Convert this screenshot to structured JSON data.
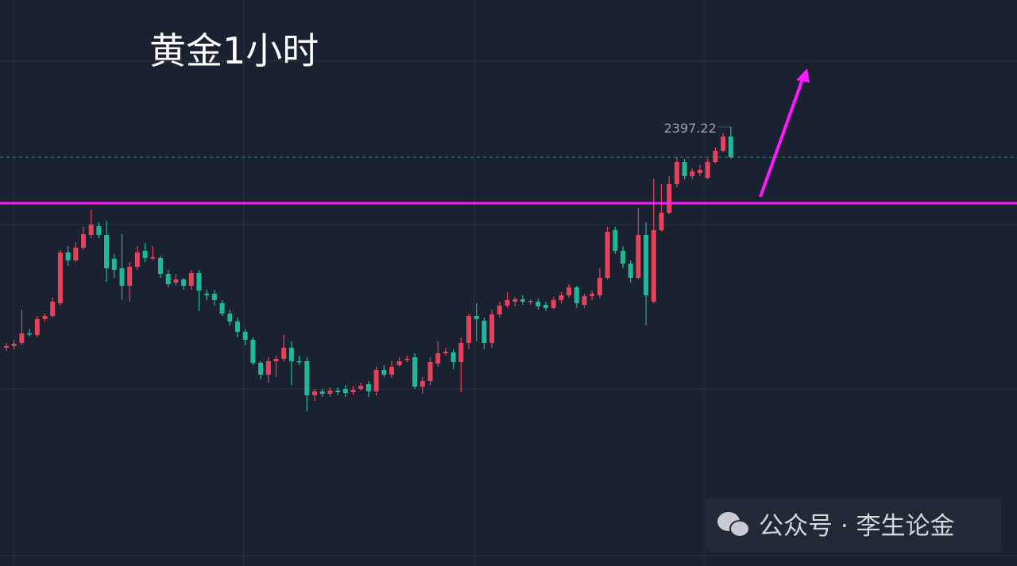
{
  "chart_data": {
    "type": "candlestick",
    "title": "黄金1小时",
    "watermark": "公众号 · 李生论金",
    "up_color": "#e8425a",
    "down_color": "#1fb89b",
    "line_color": "#ff1aff",
    "ylim": [
      2258.97,
      2437.22
    ],
    "hline": 2373.22,
    "open": [
      2327.72,
      2328.22,
      2329.22,
      2332.22,
      2331.72,
      2336.72,
      2337.72,
      2341.72,
      2357.72,
      2355.22,
      2359.22,
      2363.22,
      2365.97,
      2363.22,
      2355.72,
      2352.72,
      2347.22,
      2353.22,
      2358.22,
      2355.97,
      2355.97,
      2350.97,
      2348.22,
      2349.22,
      2347.22,
      2351.22,
      2344.72,
      2344.72,
      2341.72,
      2338.47,
      2335.97,
      2332.72,
      2330.22,
      2322.97,
      2319.22,
      2323.47,
      2324.22,
      2327.72,
      2323.47,
      2323.47,
      2312.72,
      2313.97,
      2313.22,
      2314.22,
      2314.72,
      2313.72,
      2314.72,
      2316.22,
      2313.97,
      2320.72,
      2319.22,
      2322.22,
      2323.97,
      2324.72,
      2315.47,
      2317.22,
      2322.72,
      2325.97,
      2326.22,
      2323.22,
      2329.22,
      2337.72,
      2336.22,
      2329.22,
      2338.22,
      2340.97,
      2342.22,
      2342.97,
      2342.22,
      2342.22,
      2341.22,
      2340.22,
      2342.72,
      2344.22,
      2346.72,
      2341.22,
      2343.97,
      2344.22,
      2349.72,
      2364.72,
      2358.22,
      2354.22,
      2349.72,
      2363.22,
      2342.22,
      2364.72,
      2370.22,
      2379.22,
      2386.22,
      2381.72,
      2382.72,
      2381.22,
      2386.22,
      2389.72,
      2394.22
    ],
    "high": [
      2329.22,
      2330.22,
      2339.72,
      2333.47,
      2337.72,
      2338.47,
      2343.47,
      2358.47,
      2359.72,
      2360.97,
      2365.97,
      2371.22,
      2367.22,
      2367.72,
      2357.22,
      2363.47,
      2354.72,
      2359.72,
      2360.72,
      2359.72,
      2356.72,
      2352.22,
      2350.97,
      2349.72,
      2352.22,
      2352.22,
      2345.97,
      2345.97,
      2342.72,
      2339.72,
      2337.22,
      2333.47,
      2330.97,
      2323.47,
      2324.72,
      2325.22,
      2331.72,
      2329.72,
      2325.22,
      2324.72,
      2314.72,
      2314.72,
      2315.22,
      2315.22,
      2315.97,
      2315.72,
      2316.72,
      2317.22,
      2321.72,
      2322.22,
      2323.47,
      2324.72,
      2325.22,
      2325.97,
      2318.47,
      2324.72,
      2329.72,
      2327.72,
      2327.22,
      2330.97,
      2338.47,
      2341.72,
      2337.22,
      2339.72,
      2342.22,
      2345.22,
      2343.72,
      2344.22,
      2342.97,
      2343.22,
      2342.22,
      2343.72,
      2345.22,
      2347.72,
      2347.22,
      2344.72,
      2345.72,
      2352.72,
      2365.72,
      2365.72,
      2359.72,
      2355.22,
      2371.72,
      2367.22,
      2380.97,
      2379.22,
      2381.72,
      2387.72,
      2387.22,
      2384.22,
      2385.22,
      2387.22,
      2390.72,
      2395.22,
      2397.22
    ],
    "low": [
      2326.72,
      2327.22,
      2328.47,
      2331.22,
      2330.97,
      2335.97,
      2337.22,
      2340.97,
      2353.47,
      2354.72,
      2358.47,
      2362.22,
      2362.22,
      2348.47,
      2349.72,
      2342.72,
      2342.22,
      2352.22,
      2354.72,
      2355.22,
      2349.72,
      2346.72,
      2347.22,
      2345.97,
      2345.97,
      2339.22,
      2342.72,
      2340.97,
      2337.72,
      2334.72,
      2330.97,
      2328.47,
      2322.22,
      2317.72,
      2316.72,
      2318.47,
      2323.22,
      2315.97,
      2322.22,
      2307.72,
      2310.97,
      2312.22,
      2312.22,
      2312.72,
      2312.22,
      2312.97,
      2314.22,
      2312.22,
      2312.72,
      2318.47,
      2318.22,
      2321.72,
      2323.22,
      2314.72,
      2313.22,
      2315.97,
      2321.72,
      2325.22,
      2320.97,
      2313.72,
      2327.22,
      2329.72,
      2327.22,
      2327.72,
      2337.22,
      2340.22,
      2340.72,
      2341.22,
      2341.22,
      2339.72,
      2339.22,
      2339.72,
      2341.72,
      2343.47,
      2340.22,
      2340.22,
      2342.72,
      2343.22,
      2349.22,
      2357.22,
      2352.72,
      2348.22,
      2349.22,
      2334.72,
      2341.72,
      2364.22,
      2369.72,
      2378.22,
      2380.72,
      2380.72,
      2381.72,
      2380.72,
      2385.72,
      2389.22,
      2387.22
    ],
    "close": [
      2328.22,
      2328.97,
      2332.22,
      2331.97,
      2336.72,
      2337.72,
      2342.22,
      2357.72,
      2355.22,
      2359.22,
      2363.47,
      2366.47,
      2363.22,
      2352.72,
      2352.22,
      2347.22,
      2353.22,
      2357.72,
      2355.97,
      2356.22,
      2350.97,
      2347.72,
      2349.22,
      2347.22,
      2351.22,
      2345.72,
      2344.22,
      2342.72,
      2338.47,
      2335.97,
      2332.72,
      2330.22,
      2322.97,
      2319.22,
      2323.47,
      2324.22,
      2327.72,
      2323.47,
      2323.22,
      2312.72,
      2313.97,
      2313.22,
      2314.22,
      2313.72,
      2313.47,
      2314.47,
      2315.72,
      2313.97,
      2320.72,
      2319.22,
      2321.72,
      2323.47,
      2324.22,
      2315.47,
      2317.22,
      2323.22,
      2325.97,
      2326.47,
      2323.22,
      2329.22,
      2337.72,
      2336.72,
      2329.22,
      2338.22,
      2340.97,
      2342.72,
      2342.97,
      2342.22,
      2342.47,
      2340.72,
      2340.22,
      2342.72,
      2344.22,
      2346.72,
      2341.72,
      2343.97,
      2344.72,
      2349.72,
      2364.22,
      2358.22,
      2354.22,
      2349.72,
      2363.22,
      2344.22,
      2364.72,
      2370.22,
      2379.22,
      2386.22,
      2381.72,
      2383.22,
      2383.72,
      2386.22,
      2389.72,
      2394.22,
      2387.72
    ]
  }
}
